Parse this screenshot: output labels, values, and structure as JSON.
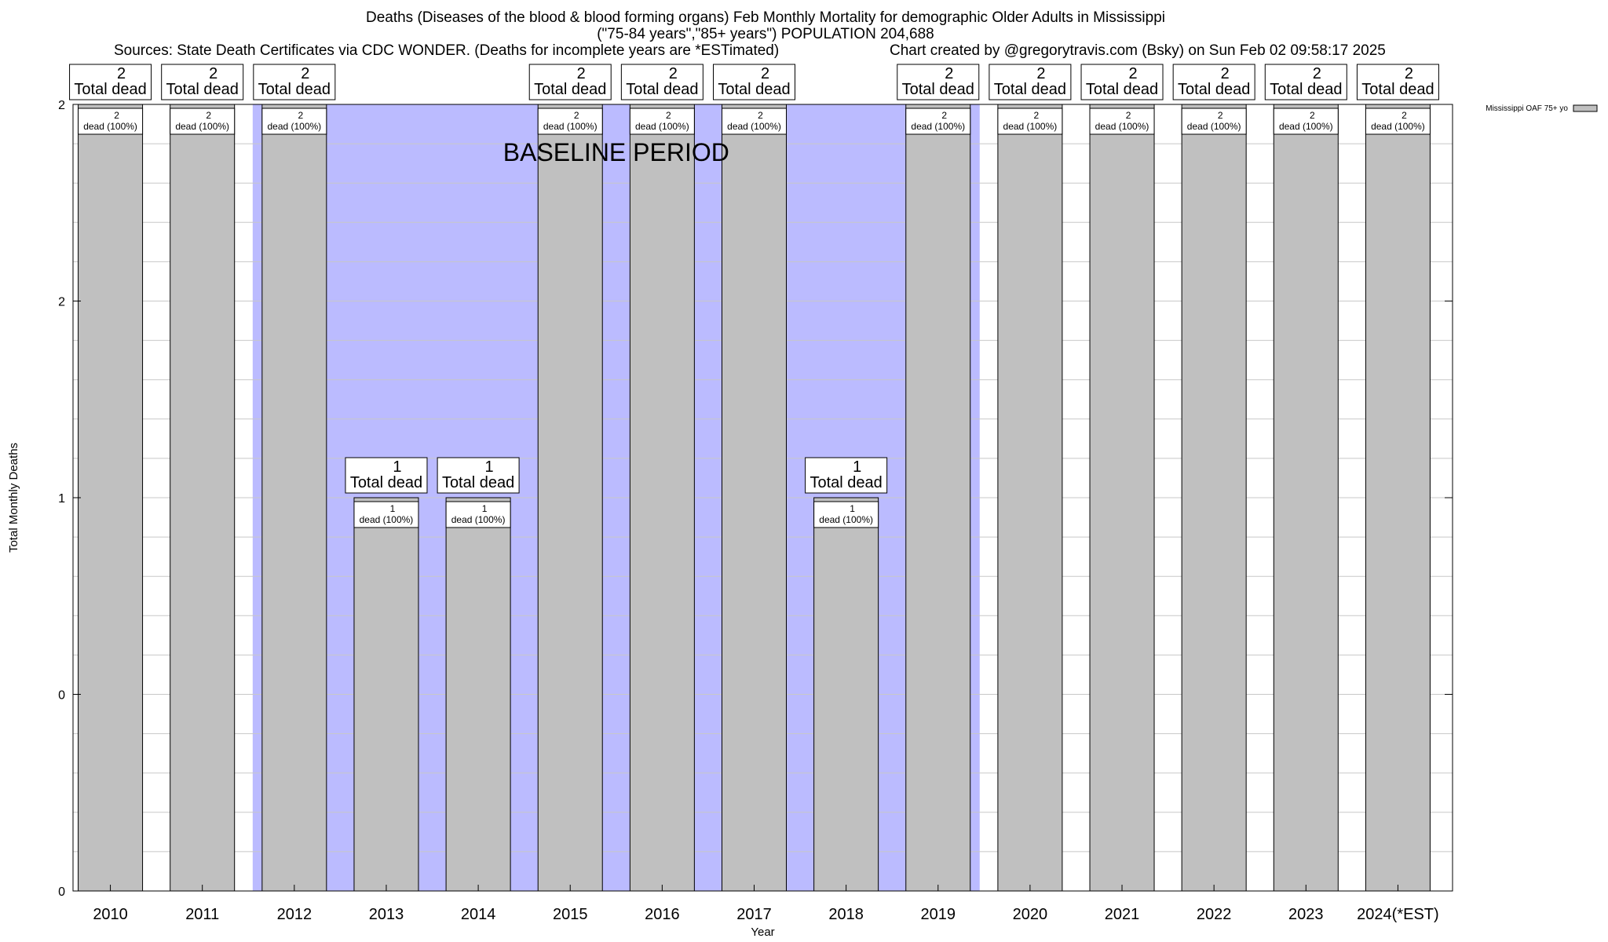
{
  "chart_data": {
    "type": "bar",
    "title": "Deaths (Diseases of the blood & blood forming organs) Feb Monthly Mortality for demographic Older Adults in Mississippi",
    "subtitle": "(\"75-84 years\",\"85+ years\") POPULATION 204,688",
    "sources": "Sources: State Death Certificates via CDC WONDER. (Deaths for incomplete years are *ESTimated)",
    "credit": "Chart created by @gregorytravis.com (Bsky) on Sun Feb 02 09:58:17 2025",
    "xlabel": "Year",
    "ylabel": "Total Monthly Deaths",
    "categories": [
      "2010",
      "2011",
      "2012",
      "2013",
      "2014",
      "2015",
      "2016",
      "2017",
      "2018",
      "2019",
      "2020",
      "2021",
      "2022",
      "2023",
      "2024(*EST)"
    ],
    "series": [
      {
        "name": "Mississippi OAF 75+ yo",
        "color": "#c0c0c0",
        "values": [
          2,
          2,
          2,
          1,
          1,
          2,
          2,
          2,
          1,
          2,
          2,
          2,
          2,
          2,
          2
        ]
      }
    ],
    "ylim": [
      0,
      2
    ],
    "yticks": [
      {
        "label": "0",
        "value": 0
      },
      {
        "label": "0",
        "value": 0.5
      },
      {
        "label": "1",
        "value": 1
      },
      {
        "label": "2",
        "value": 1.5
      },
      {
        "label": "2",
        "value": 2
      }
    ],
    "total_label_suffix": "Total dead",
    "bar_label_suffix": "dead (100%)",
    "baseline": {
      "label": "BASELINE PERIOD",
      "from": "2012",
      "to": "2019",
      "color": "#bbbbff"
    },
    "grid": true,
    "legend_position": "top-right"
  }
}
